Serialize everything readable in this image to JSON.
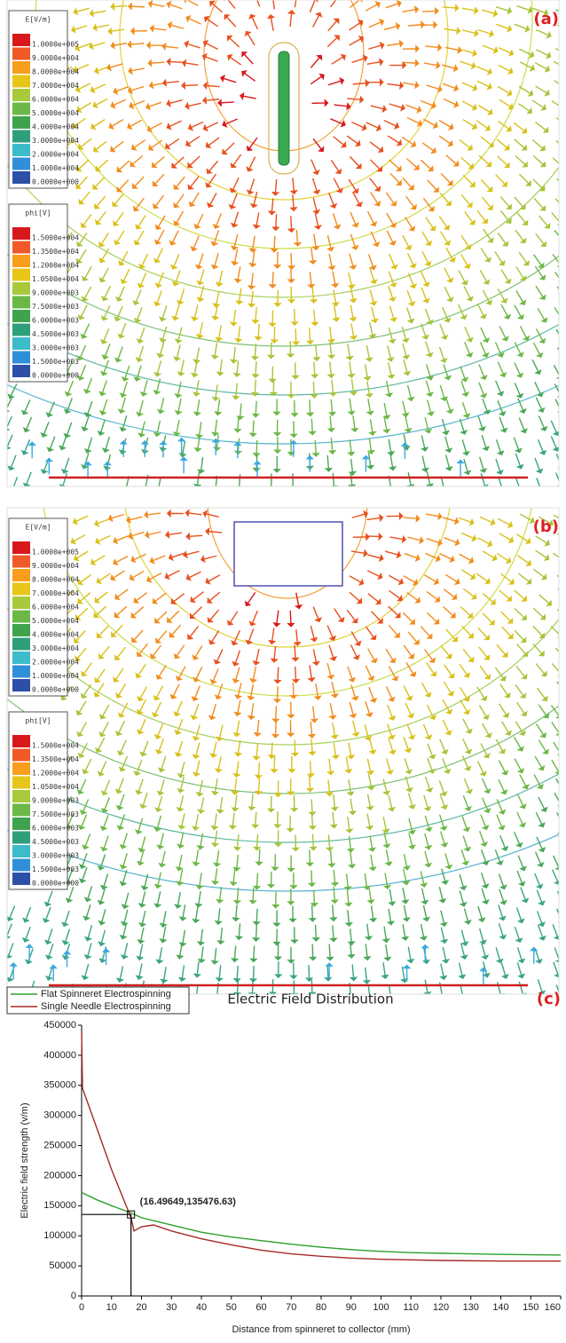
{
  "field_plots": [
    {
      "label": "(a)",
      "legends": [
        {
          "title": "E[V/m]",
          "labels": [
            "1.0000e+005",
            "9.0000e+004",
            "8.0000e+004",
            "7.0000e+004",
            "6.0000e+004",
            "5.0000e+004",
            "4.0000e+004",
            "3.0000e+004",
            "2.0000e+004",
            "1.0000e+004",
            "0.0000e+000"
          ]
        },
        {
          "title": "phi[V]",
          "labels": [
            "1.5000e+004",
            "1.3500e+004",
            "1.2000e+004",
            "1.0500e+004",
            "9.0000e+003",
            "7.5000e+003",
            "6.0000e+003",
            "4.5000e+003",
            "3.0000e+003",
            "1.5000e+003",
            "0.0000e+000"
          ]
        }
      ]
    },
    {
      "label": "(b)",
      "legends": [
        {
          "title": "E[V/m]",
          "labels": [
            "1.0000e+005",
            "9.0000e+004",
            "8.0000e+004",
            "7.0000e+004",
            "6.0000e+004",
            "5.0000e+004",
            "4.0000e+004",
            "3.0000e+004",
            "2.0000e+004",
            "1.0000e+004",
            "0.0000e+000"
          ]
        },
        {
          "title": "phi[V]",
          "labels": [
            "1.5000e+004",
            "1.3500e+004",
            "1.2000e+004",
            "1.0500e+004",
            "9.0000e+003",
            "7.5000e+003",
            "6.0000e+003",
            "4.5000e+003",
            "3.0000e+003",
            "1.5000e+003",
            "0.0000e+000"
          ]
        }
      ]
    }
  ],
  "chart_data": {
    "type": "line",
    "title": "Electric Field Distribution",
    "panel_label": "(c)",
    "x_label": "Distance from spinneret to collector (mm)",
    "y_label": "Electric field strength (v/m)",
    "xlim": [
      0,
      160
    ],
    "xticks": [
      0,
      10,
      20,
      30,
      40,
      50,
      60,
      70,
      80,
      90,
      100,
      110,
      120,
      130,
      140,
      150,
      160
    ],
    "ylim": [
      0,
      450000
    ],
    "yticks": [
      0,
      50000,
      100000,
      150000,
      200000,
      250000,
      300000,
      350000,
      400000,
      450000
    ],
    "series": [
      {
        "name": "Flat Spinneret Electrospinning",
        "color": "#2ca02c",
        "x": [
          0,
          5,
          10,
          16.5,
          20,
          30,
          40,
          50,
          60,
          70,
          80,
          90,
          100,
          110,
          120,
          130,
          140,
          150,
          160
        ],
        "values": [
          172000,
          160000,
          150000,
          138000,
          130000,
          118000,
          106000,
          98000,
          92000,
          86000,
          81000,
          77000,
          74000,
          72000,
          71000,
          70000,
          69000,
          68500,
          68000
        ]
      },
      {
        "name": "Single Needle Electrospinning",
        "color": "#a52a2a",
        "x": [
          0,
          0.3,
          5,
          10,
          16.5,
          17.5,
          20,
          24,
          30,
          40,
          50,
          60,
          70,
          80,
          90,
          100,
          120,
          140,
          160
        ],
        "values": [
          440000,
          345000,
          280000,
          210000,
          130000,
          108000,
          115000,
          118000,
          108000,
          95000,
          85000,
          76000,
          70000,
          66000,
          63000,
          61000,
          59000,
          58000,
          58000
        ]
      }
    ],
    "annotation": {
      "x": 16.49649,
      "y": 135476.63,
      "label": "(16.49649,135476.63)"
    }
  }
}
